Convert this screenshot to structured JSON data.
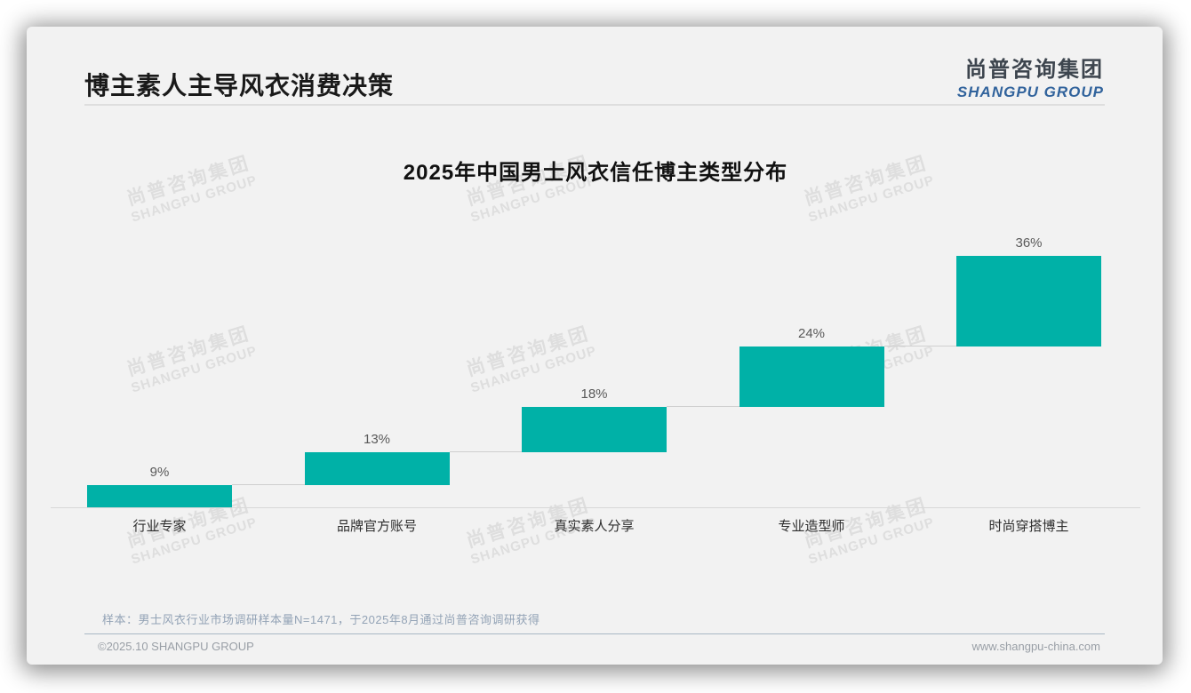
{
  "page": {
    "title": "博主素人主导风衣消费决策",
    "logo": {
      "cn": "尚普咨询集团",
      "en": "SHANGPU GROUP"
    },
    "watermark": {
      "cn": "尚普咨询集团",
      "en": "SHANGPU GROUP"
    },
    "sample_note": "样本：男士风衣行业市场调研样本量N=1471，于2025年8月通过尚普咨询调研获得",
    "footer": {
      "copyright": "©2025.10 SHANGPU GROUP",
      "website": "www.shangpu-china.com"
    }
  },
  "chart_data": {
    "type": "bar",
    "subtype": "waterfall",
    "title": "2025年中国男士风衣信任博主类型分布",
    "categories": [
      "行业专家",
      "品牌官方账号",
      "真实素人分享",
      "专业造型师",
      "时尚穿搭博主"
    ],
    "values": [
      9,
      13,
      18,
      24,
      36
    ],
    "data_labels": [
      "9%",
      "13%",
      "18%",
      "24%",
      "36%"
    ],
    "cumulative_starts": [
      0,
      9,
      22,
      40,
      64
    ],
    "cumulative_total": 100,
    "unit": "%",
    "ylim": [
      0,
      100
    ],
    "grid": false,
    "legend": false,
    "bar_color": "#00b1a7",
    "connector_color": "#cfcfcf",
    "axis_line_color": "#d8d8d8"
  }
}
